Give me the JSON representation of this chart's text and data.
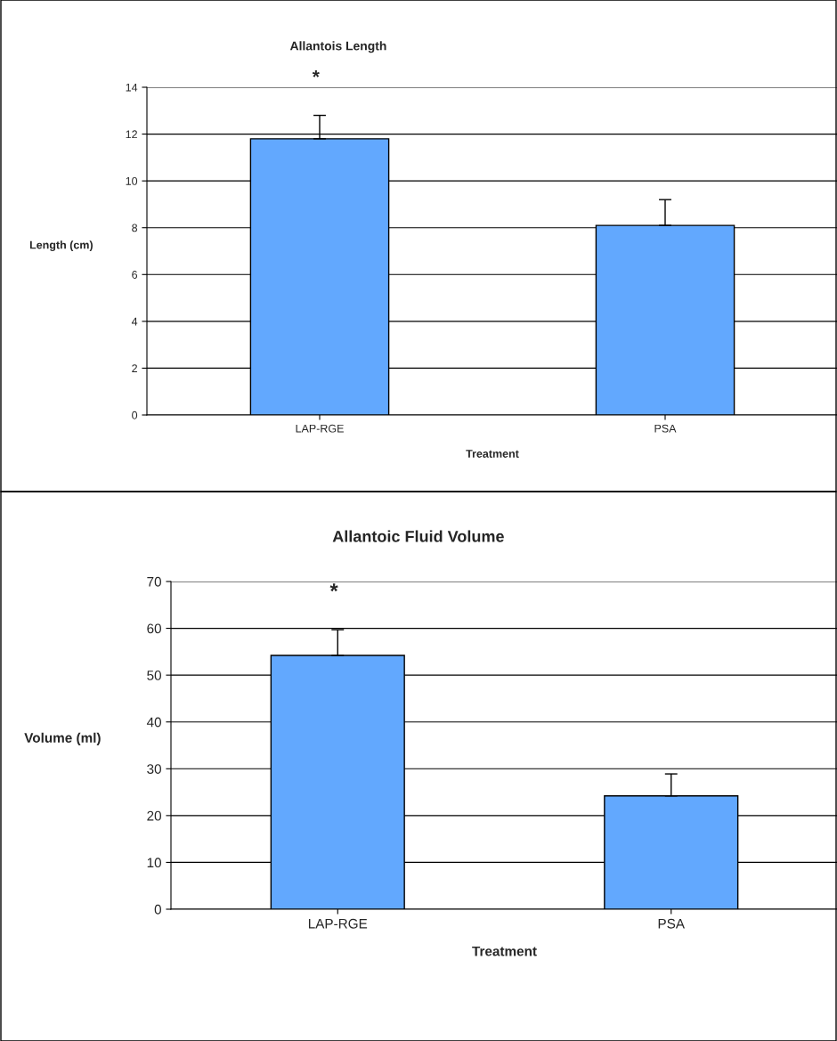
{
  "chart_data": [
    {
      "type": "bar",
      "title": "Allantois Length",
      "xlabel": "Treatment",
      "ylabel": "Length (cm)",
      "categories": [
        "LAP-RGE",
        "PSA"
      ],
      "values": [
        11.8,
        8.1
      ],
      "errors": [
        [
          11.8,
          12.8
        ],
        [
          8.1,
          9.2
        ]
      ],
      "color": "#62a8fe",
      "ylim": [
        0,
        14
      ],
      "yticks": [
        0,
        2,
        4,
        6,
        8,
        10,
        12,
        14
      ],
      "grid": "y",
      "annotations": [
        "*"
      ]
    },
    {
      "type": "bar",
      "title": "Allantoic Fluid Volume",
      "xlabel": "Treatment",
      "ylabel": "Volume (ml)",
      "categories": [
        "LAP-RGE",
        "PSA"
      ],
      "values": [
        54.2,
        24.2
      ],
      "errors": [
        [
          54.2,
          59.7
        ],
        [
          24.2,
          28.9
        ]
      ],
      "color": "#62a8fe",
      "ylim": [
        0,
        70
      ],
      "yticks": [
        0,
        10,
        20,
        30,
        40,
        50,
        60,
        70
      ],
      "grid": "y",
      "annotations": [
        "*"
      ]
    }
  ]
}
